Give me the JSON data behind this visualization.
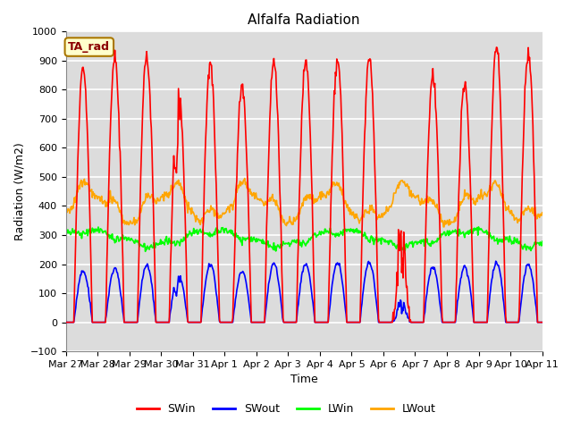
{
  "title": "Alfalfa Radiation",
  "ylabel": "Radiation (W/m2)",
  "xlabel": "Time",
  "ylim": [
    -100,
    1000
  ],
  "plot_bg_color": "#dcdcdc",
  "grid_color": "white",
  "tick_labels": [
    "Mar 27",
    "Mar 28",
    "Mar 29",
    "Mar 30",
    "Mar 31",
    "Apr 1",
    "Apr 2",
    "Apr 3",
    "Apr 4",
    "Apr 5",
    "Apr 6",
    "Apr 7",
    "Apr 8",
    "Apr 9",
    "Apr 10",
    "Apr 11"
  ],
  "legend_entries": [
    "SWin",
    "SWout",
    "LWin",
    "LWout"
  ],
  "legend_colors": [
    "#ff0000",
    "#0000ff",
    "#00ff00",
    "#ffa500"
  ],
  "annotation_text": "TA_rad",
  "annotation_bg": "#ffffcc",
  "annotation_border": "#aa7700",
  "num_days": 15,
  "dt": 0.5,
  "SW_in_peaks": [
    880,
    910,
    920,
    820,
    880,
    810,
    900,
    890,
    905,
    905,
    430,
    850,
    820,
    950,
    930
  ],
  "SW_out_peaks": [
    175,
    185,
    195,
    165,
    200,
    175,
    200,
    200,
    205,
    205,
    100,
    190,
    190,
    205,
    200
  ],
  "line_width": 1.2,
  "title_fontsize": 11,
  "label_fontsize": 9,
  "tick_fontsize": 8,
  "legend_fontsize": 9
}
